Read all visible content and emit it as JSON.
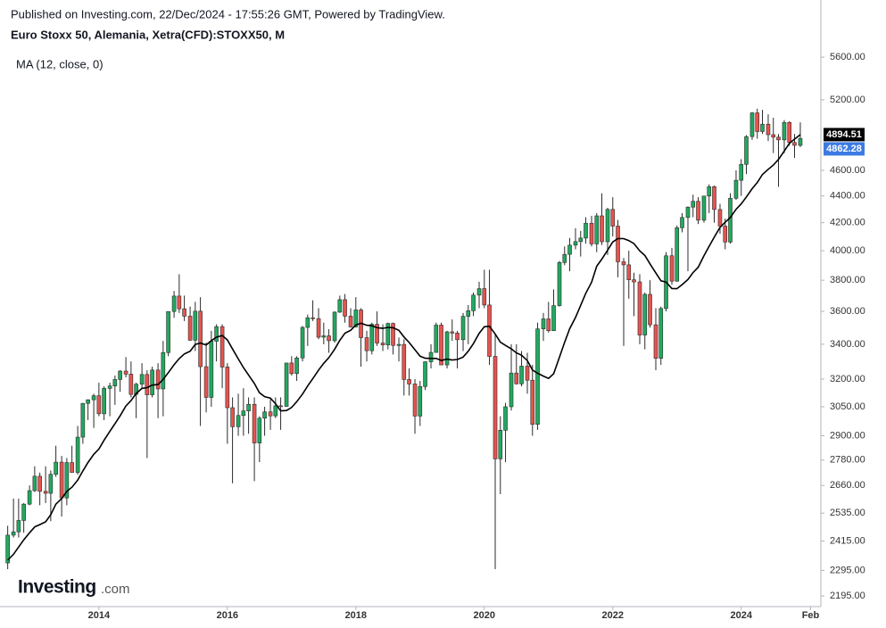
{
  "chart_data": {
    "type": "candlestick",
    "subtitle": "Published on Investing.com, 22/Dec/2024 - 17:55:26 GMT, Powered by TradingView.",
    "title": "Euro Stoxx 50, Alemania, Xetra(CFD):STOXX50, M",
    "watermark": [
      "Investing",
      ".com"
    ],
    "log_scale": true,
    "up_color": "#22a95f",
    "down_color": "#e5544f",
    "wick_color": "#2b2b2b",
    "x": [
      2012.58,
      2012.67,
      2012.75,
      2012.83,
      2012.92,
      2013,
      2013.08,
      2013.17,
      2013.25,
      2013.33,
      2013.42,
      2013.5,
      2013.58,
      2013.67,
      2013.75,
      2013.83,
      2013.92,
      2014,
      2014.08,
      2014.17,
      2014.25,
      2014.33,
      2014.42,
      2014.5,
      2014.58,
      2014.67,
      2014.75,
      2014.83,
      2014.92,
      2015,
      2015.08,
      2015.17,
      2015.25,
      2015.33,
      2015.42,
      2015.5,
      2015.58,
      2015.67,
      2015.75,
      2015.83,
      2015.92,
      2016,
      2016.08,
      2016.17,
      2016.25,
      2016.33,
      2016.42,
      2016.5,
      2016.58,
      2016.67,
      2016.75,
      2016.83,
      2016.92,
      2017,
      2017.08,
      2017.17,
      2017.25,
      2017.33,
      2017.42,
      2017.5,
      2017.58,
      2017.67,
      2017.75,
      2017.83,
      2017.92,
      2018,
      2018.08,
      2018.17,
      2018.25,
      2018.33,
      2018.42,
      2018.5,
      2018.58,
      2018.67,
      2018.75,
      2018.83,
      2018.92,
      2019,
      2019.08,
      2019.17,
      2019.25,
      2019.33,
      2019.42,
      2019.5,
      2019.58,
      2019.67,
      2019.75,
      2019.83,
      2019.92,
      2020,
      2020.08,
      2020.17,
      2020.25,
      2020.33,
      2020.42,
      2020.5,
      2020.58,
      2020.67,
      2020.75,
      2020.83,
      2020.92,
      2021,
      2021.08,
      2021.17,
      2021.25,
      2021.33,
      2021.42,
      2021.5,
      2021.58,
      2021.67,
      2021.75,
      2021.83,
      2021.92,
      2022,
      2022.08,
      2022.17,
      2022.25,
      2022.33,
      2022.42,
      2022.5,
      2022.58,
      2022.67,
      2022.75,
      2022.83,
      2022.92,
      2023,
      2023.08,
      2023.17,
      2023.25,
      2023.33,
      2023.42,
      2023.5,
      2023.58,
      2023.67,
      2023.75,
      2023.83,
      2023.92,
      2024,
      2024.08,
      2024.17,
      2024.25,
      2024.33,
      2024.42,
      2024.5,
      2024.58,
      2024.67,
      2024.75,
      2024.83,
      2024.92
    ],
    "open": [
      2325,
      2440,
      2454,
      2503,
      2575,
      2636,
      2703,
      2633,
      2624,
      2712,
      2770,
      2603,
      2768,
      2721,
      2893,
      3068,
      3087,
      3109,
      3013,
      3149,
      3162,
      3198,
      3245,
      3228,
      3116,
      3172,
      3226,
      3114,
      3251,
      3146,
      3351,
      3599,
      3697,
      3616,
      3570,
      3424,
      3601,
      3270,
      3100,
      3418,
      3506,
      3268,
      3045,
      2946,
      3004,
      3028,
      3063,
      2864,
      2990,
      3023,
      3002,
      3055,
      3052,
      3291,
      3231,
      3320,
      3501,
      3560,
      3555,
      3442,
      3450,
      3421,
      3595,
      3674,
      3570,
      3504,
      3609,
      3439,
      3362,
      3520,
      3407,
      3396,
      3525,
      3393,
      3399,
      3198,
      3173,
      3001,
      3159,
      3298,
      3352,
      3515,
      3280,
      3474,
      3467,
      3427,
      3569,
      3604,
      3703,
      3745,
      3640,
      3329,
      2786,
      2928,
      3050,
      3234,
      3174,
      3273,
      3194,
      2958,
      3492,
      3553,
      3481,
      3636,
      3919,
      3975,
      4039,
      4064,
      4089,
      4196,
      4048,
      4250,
      4063,
      4298,
      4175,
      3924,
      3903,
      3803,
      3789,
      3455,
      3708,
      3517,
      3318,
      3618,
      3965,
      3794,
      4163,
      4238,
      4315,
      4359,
      4218,
      4399,
      4471,
      4297,
      4175,
      4061,
      4382,
      4521,
      4648,
      4878,
      5083,
      4921,
      4984,
      4894,
      4873,
      4850,
      4999,
      4828,
      4804
    ],
    "high": [
      2480,
      2600,
      2600,
      2580,
      2660,
      2750,
      2720,
      2750,
      2730,
      2850,
      2800,
      2790,
      2850,
      2950,
      3070,
      3090,
      3120,
      3180,
      3160,
      3180,
      3220,
      3250,
      3325,
      3300,
      3180,
      3290,
      3250,
      3270,
      3290,
      3420,
      3600,
      3730,
      3840,
      3700,
      3630,
      3660,
      3690,
      3410,
      3480,
      3520,
      3520,
      3290,
      3100,
      3120,
      3150,
      3100,
      3100,
      3000,
      3050,
      3090,
      3100,
      3100,
      3290,
      3330,
      3330,
      3510,
      3580,
      3670,
      3620,
      3530,
      3490,
      3600,
      3700,
      3710,
      3620,
      3690,
      3620,
      3480,
      3530,
      3600,
      3520,
      3530,
      3530,
      3440,
      3430,
      3260,
      3200,
      3190,
      3300,
      3400,
      3530,
      3530,
      3480,
      3550,
      3480,
      3590,
      3640,
      3720,
      3790,
      3870,
      3870,
      3460,
      3000,
      3070,
      3400,
      3400,
      3360,
      3350,
      3280,
      3530,
      3590,
      3660,
      3740,
      3930,
      4030,
      4090,
      4160,
      4140,
      4240,
      4250,
      4270,
      4420,
      4310,
      4390,
      4220,
      3950,
      4000,
      3850,
      3840,
      3720,
      3800,
      3620,
      3630,
      3990,
      4020,
      4180,
      4270,
      4320,
      4410,
      4390,
      4400,
      4490,
      4480,
      4340,
      4230,
      4420,
      4600,
      4690,
      4890,
      5090,
      5120,
      5110,
      5070,
      5040,
      4900,
      5020,
      5010,
      4900,
      5000
    ],
    "low": [
      2300,
      2430,
      2430,
      2450,
      2570,
      2630,
      2570,
      2580,
      2500,
      2700,
      2520,
      2570,
      2720,
      2710,
      2860,
      2980,
      2940,
      3000,
      2980,
      3000,
      3060,
      3130,
      3210,
      3100,
      2990,
      3150,
      2790,
      3100,
      2990,
      3000,
      3330,
      3560,
      3590,
      3540,
      3420,
      3360,
      2950,
      3020,
      3050,
      3300,
      3150,
      2860,
      2670,
      2900,
      2900,
      2910,
      2680,
      2770,
      2900,
      2930,
      2990,
      2930,
      3050,
      3220,
      3190,
      3300,
      3390,
      3540,
      3430,
      3400,
      3350,
      3410,
      3590,
      3530,
      3500,
      3500,
      3270,
      3300,
      3340,
      3390,
      3360,
      3370,
      3340,
      3300,
      3110,
      3110,
      2910,
      2950,
      3140,
      3260,
      3350,
      3290,
      3260,
      3420,
      3260,
      3360,
      3400,
      3570,
      3620,
      3620,
      3280,
      2300,
      2620,
      2770,
      3030,
      3170,
      3160,
      3120,
      2900,
      2930,
      3420,
      3470,
      3480,
      3630,
      3900,
      3860,
      4010,
      3960,
      4050,
      4030,
      3990,
      4040,
      3970,
      4100,
      3820,
      3390,
      3680,
      3570,
      3400,
      3370,
      3500,
      3250,
      3280,
      3600,
      3770,
      3790,
      4130,
      3860,
      4240,
      4190,
      4200,
      4270,
      4200,
      4120,
      4010,
      4050,
      4370,
      4400,
      4570,
      4850,
      4860,
      4900,
      4840,
      4740,
      4470,
      4740,
      4800,
      4700,
      4790
    ],
    "close": [
      2440,
      2454,
      2503,
      2575,
      2636,
      2703,
      2633,
      2624,
      2712,
      2770,
      2603,
      2768,
      2721,
      2893,
      3068,
      3087,
      3109,
      3013,
      3149,
      3162,
      3198,
      3245,
      3228,
      3116,
      3172,
      3226,
      3114,
      3251,
      3146,
      3351,
      3599,
      3697,
      3616,
      3570,
      3424,
      3601,
      3270,
      3100,
      3418,
      3506,
      3268,
      3045,
      2946,
      3004,
      3028,
      3063,
      2864,
      2990,
      3023,
      3002,
      3055,
      3052,
      3291,
      3231,
      3320,
      3501,
      3560,
      3555,
      3442,
      3450,
      3421,
      3595,
      3674,
      3570,
      3504,
      3609,
      3439,
      3362,
      3520,
      3407,
      3396,
      3525,
      3393,
      3399,
      3198,
      3173,
      3001,
      3159,
      3298,
      3352,
      3515,
      3280,
      3474,
      3467,
      3427,
      3569,
      3604,
      3703,
      3745,
      3640,
      3329,
      2786,
      2928,
      3050,
      3234,
      3174,
      3273,
      3194,
      2958,
      3492,
      3553,
      3481,
      3636,
      3919,
      3975,
      4039,
      4064,
      4089,
      4196,
      4048,
      4250,
      4063,
      4298,
      4175,
      3924,
      3903,
      3803,
      3789,
      3455,
      3708,
      3517,
      3318,
      3618,
      3965,
      3794,
      4163,
      4238,
      4315,
      4359,
      4218,
      4399,
      4471,
      4297,
      4175,
      4061,
      4382,
      4521,
      4648,
      4878,
      5083,
      4921,
      4984,
      4894,
      4873,
      4850,
      4999,
      4828,
      4804,
      4862.28
    ],
    "ma": {
      "name": "MA (12, close, 0)",
      "color": "#000000",
      "values": [
        2336,
        2360,
        2390,
        2420,
        2450,
        2475,
        2485,
        2497,
        2528,
        2575,
        2600,
        2633,
        2652,
        2685,
        2728,
        2768,
        2808,
        2834,
        2877,
        2922,
        2962,
        3002,
        3054,
        3083,
        3121,
        3149,
        3153,
        3167,
        3170,
        3198,
        3236,
        3281,
        3316,
        3343,
        3359,
        3399,
        3407,
        3396,
        3421,
        3442,
        3452,
        3426,
        3372,
        3314,
        3265,
        3223,
        3176,
        3125,
        3104,
        3096,
        3066,
        3028,
        3030,
        3046,
        3077,
        3118,
        3162,
        3203,
        3251,
        3289,
        3322,
        3371,
        3423,
        3466,
        3484,
        3516,
        3526,
        3514,
        3511,
        3499,
        3495,
        3501,
        3499,
        3483,
        3443,
        3410,
        3368,
        3330,
        3318,
        3317,
        3317,
        3306,
        3313,
        3308,
        3311,
        3325,
        3359,
        3403,
        3465,
        3505,
        3508,
        3461,
        3412,
        3393,
        3373,
        3349,
        3336,
        3305,
        3251,
        3233,
        3217,
        3204,
        3230,
        3324,
        3411,
        3493,
        3562,
        3638,
        3715,
        3786,
        3894,
        3942,
        4004,
        4062,
        4086,
        4085,
        4071,
        4050,
        3999,
        3967,
        3910,
        3849,
        3796,
        3788,
        3746,
        3745,
        3771,
        3805,
        3851,
        3887,
        3966,
        4030,
        4095,
        4166,
        4203,
        4238,
        4299,
        4339,
        4392,
        4456,
        4503,
        4567,
        4608,
        4642,
        4688,
        4757,
        4821,
        4856,
        4894.51
      ]
    },
    "price_tags": [
      {
        "value": 4894.51,
        "color": "#000000"
      },
      {
        "value": 4862.28,
        "color": "#3d7be3"
      }
    ],
    "xlim": [
      2012.46,
      2025.24
    ],
    "xticks": [
      2014,
      2016,
      2018,
      2020,
      2022,
      2024,
      {
        "value": 2025.08,
        "label": "Feb"
      }
    ],
    "ylim": [
      2155,
      5768
    ],
    "yticks": [
      {
        "value": 2195,
        "label": "2195.00"
      },
      {
        "value": 2295,
        "label": "2295.00"
      },
      {
        "value": 2415,
        "label": "2415.00"
      },
      {
        "value": 2535,
        "label": "2535.00"
      },
      {
        "value": 2660,
        "label": "2660.00"
      },
      {
        "value": 2780,
        "label": "2780.00"
      },
      {
        "value": 2900,
        "label": "2900.00"
      },
      {
        "value": 3050,
        "label": "3050.00"
      },
      {
        "value": 3200,
        "label": "3200.00"
      },
      {
        "value": 3400,
        "label": "3400.00"
      },
      {
        "value": 3600,
        "label": "3600.00"
      },
      {
        "value": 3800,
        "label": "3800.00"
      },
      {
        "value": 4000,
        "label": "4000.00"
      },
      {
        "value": 4200,
        "label": "4200.00"
      },
      {
        "value": 4400,
        "label": "4400.00"
      },
      {
        "value": 4600,
        "label": "4600.00"
      },
      {
        "value": 5200,
        "label": "5200.00"
      },
      {
        "value": 5600,
        "label": "5600.00"
      }
    ]
  }
}
